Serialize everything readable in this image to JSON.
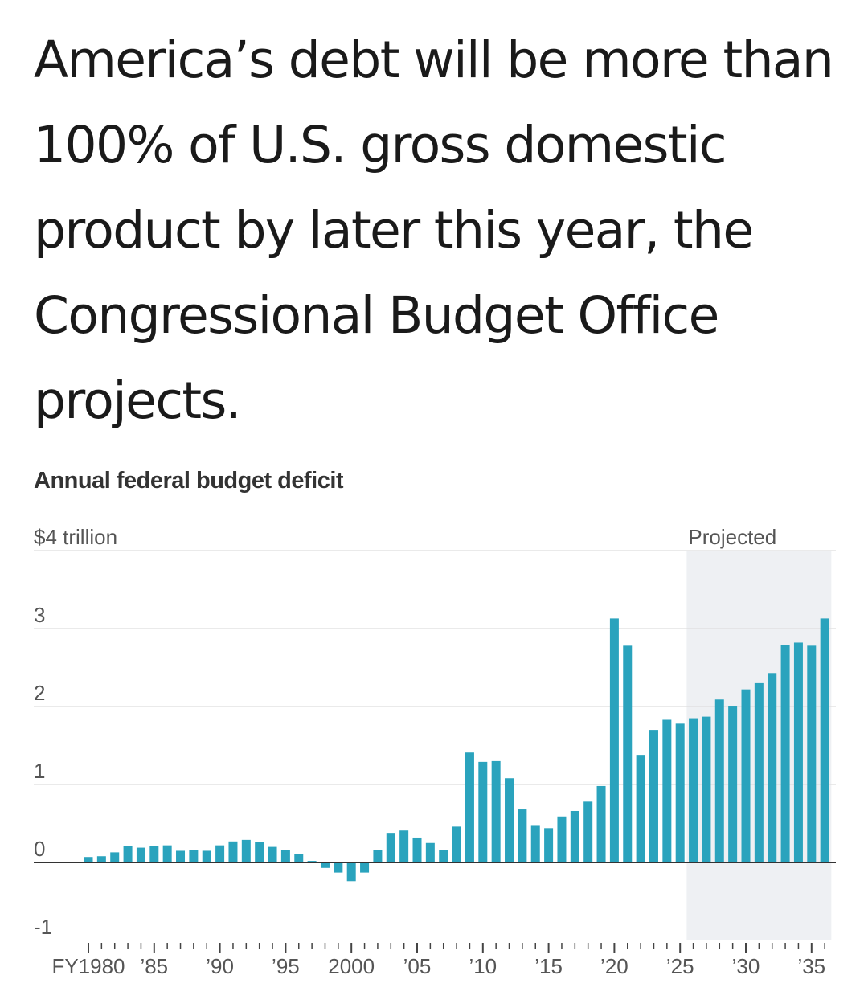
{
  "headline": "America’s debt will be more than 100% of U.S. gross domestic product by later this year, the Congressional Budget Office projects.",
  "chart_data": {
    "type": "bar",
    "title": "Annual federal budget deficit",
    "xlabel": "",
    "ylabel": "",
    "y_unit_label": "$4 trillion",
    "ylim": [
      -1,
      4
    ],
    "y_ticks": [
      "-1",
      "0",
      "1",
      "2",
      "3"
    ],
    "projected_label": "Projected",
    "projected_from": 2026,
    "colors": {
      "bar": "#2aa3bd",
      "projected_band": "#eef0f3",
      "grid": "#dddddd",
      "zero_line": "#333333",
      "axis_text": "#555555"
    },
    "x_tick_labels": [
      {
        "year": 1980,
        "label": "FY1980"
      },
      {
        "year": 1985,
        "label": "’85"
      },
      {
        "year": 1990,
        "label": "’90"
      },
      {
        "year": 1995,
        "label": "’95"
      },
      {
        "year": 2000,
        "label": "2000"
      },
      {
        "year": 2005,
        "label": "’05"
      },
      {
        "year": 2010,
        "label": "’10"
      },
      {
        "year": 2015,
        "label": "’15"
      },
      {
        "year": 2020,
        "label": "’20"
      },
      {
        "year": 2025,
        "label": "’25"
      },
      {
        "year": 2030,
        "label": "’30"
      },
      {
        "year": 2035,
        "label": "’35"
      }
    ],
    "categories": [
      1980,
      1981,
      1982,
      1983,
      1984,
      1985,
      1986,
      1987,
      1988,
      1989,
      1990,
      1991,
      1992,
      1993,
      1994,
      1995,
      1996,
      1997,
      1998,
      1999,
      2000,
      2001,
      2002,
      2003,
      2004,
      2005,
      2006,
      2007,
      2008,
      2009,
      2010,
      2011,
      2012,
      2013,
      2014,
      2015,
      2016,
      2017,
      2018,
      2019,
      2020,
      2021,
      2022,
      2023,
      2024,
      2025,
      2026,
      2027,
      2028,
      2029,
      2030,
      2031,
      2032,
      2033,
      2034,
      2035,
      2036
    ],
    "values": [
      0.07,
      0.08,
      0.13,
      0.21,
      0.19,
      0.21,
      0.22,
      0.15,
      0.16,
      0.15,
      0.22,
      0.27,
      0.29,
      0.26,
      0.2,
      0.16,
      0.11,
      0.02,
      -0.07,
      -0.13,
      -0.24,
      -0.13,
      0.16,
      0.38,
      0.41,
      0.32,
      0.25,
      0.16,
      0.46,
      1.41,
      1.29,
      1.3,
      1.08,
      0.68,
      0.48,
      0.44,
      0.59,
      0.66,
      0.78,
      0.98,
      3.13,
      2.78,
      1.38,
      1.7,
      1.83,
      1.78,
      1.85,
      1.87,
      2.09,
      2.01,
      2.22,
      2.3,
      2.43,
      2.79,
      2.82,
      2.78,
      3.13
    ]
  }
}
